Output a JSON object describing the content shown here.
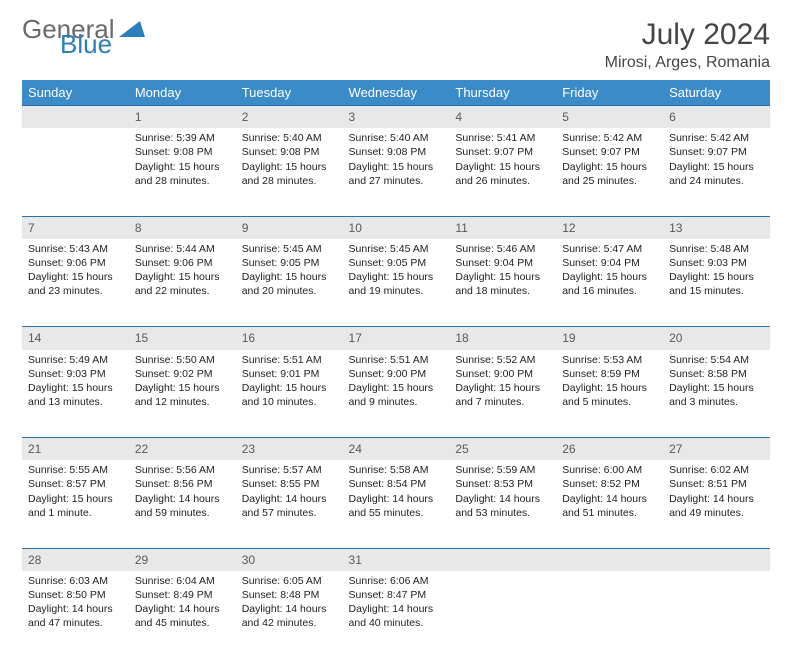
{
  "logo": {
    "text1": "General",
    "text2": "Blue",
    "color1": "#6a6a6a",
    "color2": "#2a7fbf"
  },
  "title": "July 2024",
  "location": "Mirosi, Arges, Romania",
  "header_bg": "#3b8bc8",
  "header_fg": "#ffffff",
  "daynum_bg": "#e8e8e8",
  "rule_color": "#2d6fa8",
  "days": [
    "Sunday",
    "Monday",
    "Tuesday",
    "Wednesday",
    "Thursday",
    "Friday",
    "Saturday"
  ],
  "weeks": [
    [
      null,
      {
        "n": "1",
        "sr": "5:39 AM",
        "ss": "9:08 PM",
        "dl": "15 hours and 28 minutes."
      },
      {
        "n": "2",
        "sr": "5:40 AM",
        "ss": "9:08 PM",
        "dl": "15 hours and 28 minutes."
      },
      {
        "n": "3",
        "sr": "5:40 AM",
        "ss": "9:08 PM",
        "dl": "15 hours and 27 minutes."
      },
      {
        "n": "4",
        "sr": "5:41 AM",
        "ss": "9:07 PM",
        "dl": "15 hours and 26 minutes."
      },
      {
        "n": "5",
        "sr": "5:42 AM",
        "ss": "9:07 PM",
        "dl": "15 hours and 25 minutes."
      },
      {
        "n": "6",
        "sr": "5:42 AM",
        "ss": "9:07 PM",
        "dl": "15 hours and 24 minutes."
      }
    ],
    [
      {
        "n": "7",
        "sr": "5:43 AM",
        "ss": "9:06 PM",
        "dl": "15 hours and 23 minutes."
      },
      {
        "n": "8",
        "sr": "5:44 AM",
        "ss": "9:06 PM",
        "dl": "15 hours and 22 minutes."
      },
      {
        "n": "9",
        "sr": "5:45 AM",
        "ss": "9:05 PM",
        "dl": "15 hours and 20 minutes."
      },
      {
        "n": "10",
        "sr": "5:45 AM",
        "ss": "9:05 PM",
        "dl": "15 hours and 19 minutes."
      },
      {
        "n": "11",
        "sr": "5:46 AM",
        "ss": "9:04 PM",
        "dl": "15 hours and 18 minutes."
      },
      {
        "n": "12",
        "sr": "5:47 AM",
        "ss": "9:04 PM",
        "dl": "15 hours and 16 minutes."
      },
      {
        "n": "13",
        "sr": "5:48 AM",
        "ss": "9:03 PM",
        "dl": "15 hours and 15 minutes."
      }
    ],
    [
      {
        "n": "14",
        "sr": "5:49 AM",
        "ss": "9:03 PM",
        "dl": "15 hours and 13 minutes."
      },
      {
        "n": "15",
        "sr": "5:50 AM",
        "ss": "9:02 PM",
        "dl": "15 hours and 12 minutes."
      },
      {
        "n": "16",
        "sr": "5:51 AM",
        "ss": "9:01 PM",
        "dl": "15 hours and 10 minutes."
      },
      {
        "n": "17",
        "sr": "5:51 AM",
        "ss": "9:00 PM",
        "dl": "15 hours and 9 minutes."
      },
      {
        "n": "18",
        "sr": "5:52 AM",
        "ss": "9:00 PM",
        "dl": "15 hours and 7 minutes."
      },
      {
        "n": "19",
        "sr": "5:53 AM",
        "ss": "8:59 PM",
        "dl": "15 hours and 5 minutes."
      },
      {
        "n": "20",
        "sr": "5:54 AM",
        "ss": "8:58 PM",
        "dl": "15 hours and 3 minutes."
      }
    ],
    [
      {
        "n": "21",
        "sr": "5:55 AM",
        "ss": "8:57 PM",
        "dl": "15 hours and 1 minute."
      },
      {
        "n": "22",
        "sr": "5:56 AM",
        "ss": "8:56 PM",
        "dl": "14 hours and 59 minutes."
      },
      {
        "n": "23",
        "sr": "5:57 AM",
        "ss": "8:55 PM",
        "dl": "14 hours and 57 minutes."
      },
      {
        "n": "24",
        "sr": "5:58 AM",
        "ss": "8:54 PM",
        "dl": "14 hours and 55 minutes."
      },
      {
        "n": "25",
        "sr": "5:59 AM",
        "ss": "8:53 PM",
        "dl": "14 hours and 53 minutes."
      },
      {
        "n": "26",
        "sr": "6:00 AM",
        "ss": "8:52 PM",
        "dl": "14 hours and 51 minutes."
      },
      {
        "n": "27",
        "sr": "6:02 AM",
        "ss": "8:51 PM",
        "dl": "14 hours and 49 minutes."
      }
    ],
    [
      {
        "n": "28",
        "sr": "6:03 AM",
        "ss": "8:50 PM",
        "dl": "14 hours and 47 minutes."
      },
      {
        "n": "29",
        "sr": "6:04 AM",
        "ss": "8:49 PM",
        "dl": "14 hours and 45 minutes."
      },
      {
        "n": "30",
        "sr": "6:05 AM",
        "ss": "8:48 PM",
        "dl": "14 hours and 42 minutes."
      },
      {
        "n": "31",
        "sr": "6:06 AM",
        "ss": "8:47 PM",
        "dl": "14 hours and 40 minutes."
      },
      null,
      null,
      null
    ]
  ],
  "labels": {
    "sunrise": "Sunrise:",
    "sunset": "Sunset:",
    "daylight": "Daylight:"
  }
}
